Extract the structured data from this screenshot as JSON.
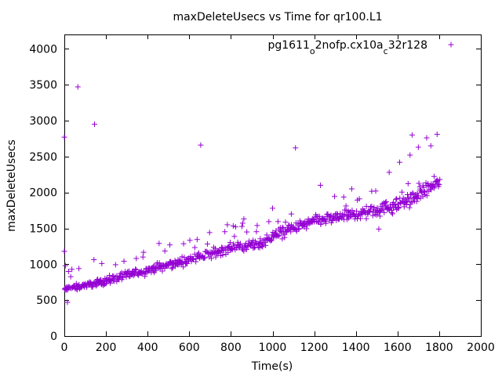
{
  "chart_data": {
    "type": "scatter",
    "title": "maxDeleteUsecs vs Time for qr100.L1",
    "xlabel": "Time(s)",
    "ylabel": "maxDeleteUsecs",
    "xlim": [
      0,
      2000
    ],
    "ylim": [
      0,
      4200
    ],
    "xticks": [
      "0",
      "200",
      "400",
      "600",
      "800",
      "1000",
      "1200",
      "1400",
      "1600",
      "1800",
      "2000"
    ],
    "yticks": [
      "0",
      "500",
      "1000",
      "1500",
      "2000",
      "2500",
      "3000",
      "3500",
      "4000"
    ],
    "legend": {
      "parts": [
        {
          "text": "pg1611",
          "sub": false
        },
        {
          "text": "o",
          "sub": true
        },
        {
          "text": "2nofp.cx10a",
          "sub": false
        },
        {
          "text": "c",
          "sub": true
        },
        {
          "text": "32r128",
          "sub": false
        }
      ],
      "position": "top-right",
      "marker": "+"
    },
    "series_color": "#9400d3",
    "series": [
      {
        "name": "pg1611o2nofp.cx10ac32r128",
        "trend": {
          "x": [
            0,
            50,
            200,
            400,
            600,
            800,
            950,
            1000,
            1100,
            1200,
            1400,
            1600,
            1700,
            1800
          ],
          "y": [
            650,
            680,
            770,
            920,
            1060,
            1230,
            1300,
            1400,
            1500,
            1600,
            1700,
            1820,
            1980,
            2140
          ]
        },
        "sample_interval": 5,
        "outliers": [
          {
            "x": 0,
            "y": 2770
          },
          {
            "x": 0,
            "y": 1180
          },
          {
            "x": 5,
            "y": 980
          },
          {
            "x": 15,
            "y": 470
          },
          {
            "x": 20,
            "y": 900
          },
          {
            "x": 65,
            "y": 3470
          },
          {
            "x": 70,
            "y": 940
          },
          {
            "x": 145,
            "y": 2950
          },
          {
            "x": 180,
            "y": 1010
          },
          {
            "x": 455,
            "y": 1290
          },
          {
            "x": 655,
            "y": 2660
          },
          {
            "x": 1000,
            "y": 1780
          },
          {
            "x": 1090,
            "y": 1700
          },
          {
            "x": 1110,
            "y": 2620
          },
          {
            "x": 1230,
            "y": 2100
          },
          {
            "x": 1380,
            "y": 2050
          },
          {
            "x": 1510,
            "y": 1490
          },
          {
            "x": 1560,
            "y": 2280
          },
          {
            "x": 1610,
            "y": 2420
          },
          {
            "x": 1660,
            "y": 2520
          },
          {
            "x": 1670,
            "y": 2800
          },
          {
            "x": 1700,
            "y": 2630
          },
          {
            "x": 1740,
            "y": 2760
          },
          {
            "x": 1760,
            "y": 2650
          },
          {
            "x": 1790,
            "y": 2810
          }
        ]
      }
    ]
  }
}
